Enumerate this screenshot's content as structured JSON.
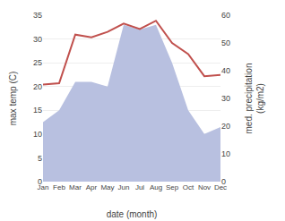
{
  "chart_data": {
    "type": "line",
    "xlabel": "date (month)",
    "ylabel": "max temp (C)",
    "y2label": "med. precipitation\n(kg/m2)",
    "categories": [
      "Jan",
      "Feb",
      "Mar",
      "Apr",
      "May",
      "Jun",
      "Jul",
      "Aug",
      "Sep",
      "Oct",
      "Nov",
      "Dec"
    ],
    "series": [
      {
        "type": "area",
        "color": "#b8c0e0",
        "values": [
          12.5,
          15.0,
          21.0,
          21.0,
          20.0,
          33.0,
          32.0,
          33.0,
          25.0,
          15.0,
          10.0,
          11.5
        ]
      },
      {
        "type": "line",
        "color": "#c0504d",
        "axis": "y2",
        "values": [
          35.0,
          35.5,
          53.0,
          52.0,
          54.0,
          57.0,
          55.0,
          58.0,
          50.0,
          46.0,
          38.0,
          38.5
        ]
      }
    ],
    "ylim": [
      0,
      35
    ],
    "yticks": [
      0,
      5,
      10,
      15,
      20,
      25,
      30,
      35
    ],
    "y2lim": [
      0,
      60
    ],
    "y2ticks": [
      0,
      10,
      20,
      30,
      40,
      50,
      60
    ],
    "grid": true
  }
}
